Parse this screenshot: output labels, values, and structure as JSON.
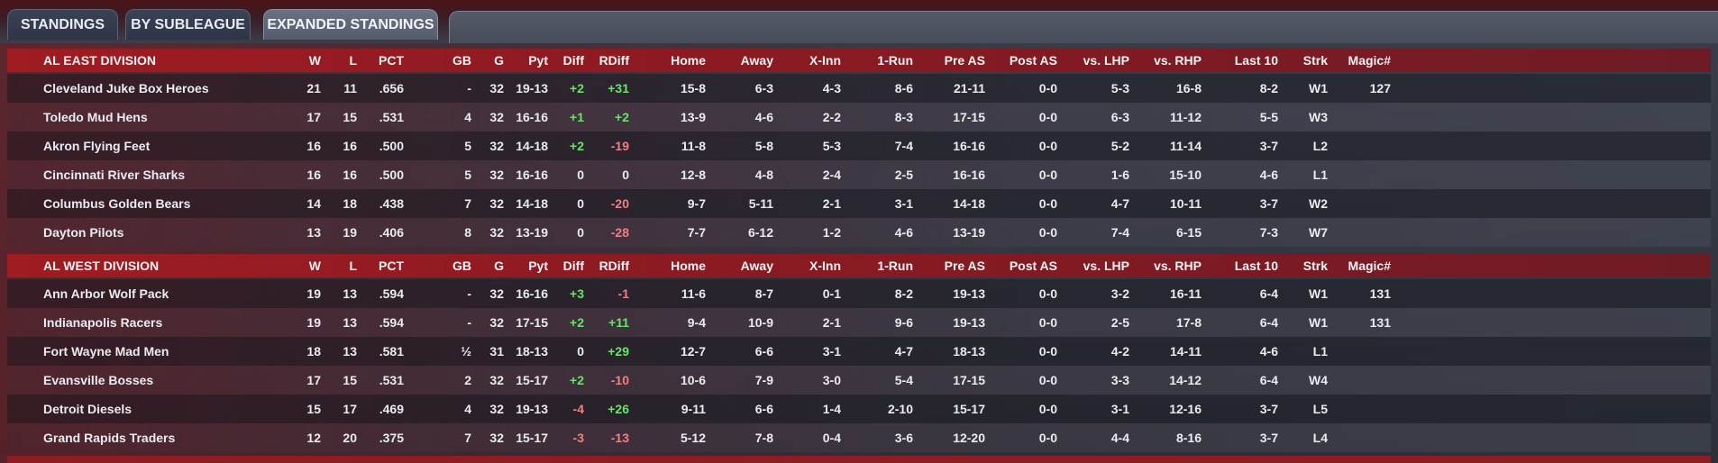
{
  "tabs": [
    {
      "label": "STANDINGS",
      "active": false
    },
    {
      "label": "BY SUBLEAGUE",
      "active": false
    },
    {
      "label": "EXPANDED STANDINGS",
      "active": true
    }
  ],
  "columns": [
    "W",
    "L",
    "PCT",
    "GB",
    "G",
    "Pyt",
    "Diff",
    "RDiff",
    "Home",
    "Away",
    "X-Inn",
    "1-Run",
    "Pre AS",
    "Post AS",
    "vs. LHP",
    "vs. RHP",
    "Last 10",
    "Strk",
    "Magic#"
  ],
  "divisions": [
    {
      "name": "AL EAST DIVISION",
      "teams": [
        {
          "team": "Cleveland Juke Box Heroes",
          "W": "21",
          "L": "11",
          "PCT": ".656",
          "GB": "-",
          "G": "32",
          "Pyt": "19-13",
          "Diff": "+2",
          "RDiff": "+31",
          "Home": "15-8",
          "Away": "6-3",
          "XInn": "4-3",
          "OneRun": "8-6",
          "PreAS": "21-11",
          "PostAS": "0-0",
          "vsLHP": "5-3",
          "vsRHP": "16-8",
          "Last10": "8-2",
          "Strk": "W1",
          "Magic": "127"
        },
        {
          "team": "Toledo  Mud Hens",
          "W": "17",
          "L": "15",
          "PCT": ".531",
          "GB": "4",
          "G": "32",
          "Pyt": "16-16",
          "Diff": "+1",
          "RDiff": "+2",
          "Home": "13-9",
          "Away": "4-6",
          "XInn": "2-2",
          "OneRun": "8-3",
          "PreAS": "17-15",
          "PostAS": "0-0",
          "vsLHP": "6-3",
          "vsRHP": "11-12",
          "Last10": "5-5",
          "Strk": "W3",
          "Magic": ""
        },
        {
          "team": "Akron  Flying Feet",
          "W": "16",
          "L": "16",
          "PCT": ".500",
          "GB": "5",
          "G": "32",
          "Pyt": "14-18",
          "Diff": "+2",
          "RDiff": "-19",
          "Home": "11-8",
          "Away": "5-8",
          "XInn": "5-3",
          "OneRun": "7-4",
          "PreAS": "16-16",
          "PostAS": "0-0",
          "vsLHP": "5-2",
          "vsRHP": "11-14",
          "Last10": "3-7",
          "Strk": "L2",
          "Magic": ""
        },
        {
          "team": "Cincinnati River Sharks",
          "W": "16",
          "L": "16",
          "PCT": ".500",
          "GB": "5",
          "G": "32",
          "Pyt": "16-16",
          "Diff": "0",
          "RDiff": "0",
          "Home": "12-8",
          "Away": "4-8",
          "XInn": "2-4",
          "OneRun": "2-5",
          "PreAS": "16-16",
          "PostAS": "0-0",
          "vsLHP": "1-6",
          "vsRHP": "15-10",
          "Last10": "4-6",
          "Strk": "L1",
          "Magic": ""
        },
        {
          "team": "Columbus Golden Bears",
          "W": "14",
          "L": "18",
          "PCT": ".438",
          "GB": "7",
          "G": "32",
          "Pyt": "14-18",
          "Diff": "0",
          "RDiff": "-20",
          "Home": "9-7",
          "Away": "5-11",
          "XInn": "2-1",
          "OneRun": "3-1",
          "PreAS": "14-18",
          "PostAS": "0-0",
          "vsLHP": "4-7",
          "vsRHP": "10-11",
          "Last10": "3-7",
          "Strk": "W2",
          "Magic": ""
        },
        {
          "team": "Dayton Pilots",
          "W": "13",
          "L": "19",
          "PCT": ".406",
          "GB": "8",
          "G": "32",
          "Pyt": "13-19",
          "Diff": "0",
          "RDiff": "-28",
          "Home": "7-7",
          "Away": "6-12",
          "XInn": "1-2",
          "OneRun": "4-6",
          "PreAS": "13-19",
          "PostAS": "0-0",
          "vsLHP": "7-4",
          "vsRHP": "6-15",
          "Last10": "7-3",
          "Strk": "W7",
          "Magic": ""
        }
      ]
    },
    {
      "name": "AL WEST DIVISION",
      "teams": [
        {
          "team": "Ann Arbor Wolf Pack",
          "W": "19",
          "L": "13",
          "PCT": ".594",
          "GB": "-",
          "G": "32",
          "Pyt": "16-16",
          "Diff": "+3",
          "RDiff": "-1",
          "Home": "11-6",
          "Away": "8-7",
          "XInn": "0-1",
          "OneRun": "8-2",
          "PreAS": "19-13",
          "PostAS": "0-0",
          "vsLHP": "3-2",
          "vsRHP": "16-11",
          "Last10": "6-4",
          "Strk": "W1",
          "Magic": "131"
        },
        {
          "team": "Indianapolis Racers",
          "W": "19",
          "L": "13",
          "PCT": ".594",
          "GB": "-",
          "G": "32",
          "Pyt": "17-15",
          "Diff": "+2",
          "RDiff": "+11",
          "Home": "9-4",
          "Away": "10-9",
          "XInn": "2-1",
          "OneRun": "9-6",
          "PreAS": "19-13",
          "PostAS": "0-0",
          "vsLHP": "2-5",
          "vsRHP": "17-8",
          "Last10": "6-4",
          "Strk": "W1",
          "Magic": "131"
        },
        {
          "team": "Fort Wayne Mad Men",
          "W": "18",
          "L": "13",
          "PCT": ".581",
          "GB": "½",
          "G": "31",
          "Pyt": "18-13",
          "Diff": "0",
          "RDiff": "+29",
          "Home": "12-7",
          "Away": "6-6",
          "XInn": "3-1",
          "OneRun": "4-7",
          "PreAS": "18-13",
          "PostAS": "0-0",
          "vsLHP": "4-2",
          "vsRHP": "14-11",
          "Last10": "4-6",
          "Strk": "L1",
          "Magic": ""
        },
        {
          "team": "Evansville Bosses",
          "W": "17",
          "L": "15",
          "PCT": ".531",
          "GB": "2",
          "G": "32",
          "Pyt": "15-17",
          "Diff": "+2",
          "RDiff": "-10",
          "Home": "10-6",
          "Away": "7-9",
          "XInn": "3-0",
          "OneRun": "5-4",
          "PreAS": "17-15",
          "PostAS": "0-0",
          "vsLHP": "3-3",
          "vsRHP": "14-12",
          "Last10": "6-4",
          "Strk": "W4",
          "Magic": ""
        },
        {
          "team": "Detroit Diesels",
          "W": "15",
          "L": "17",
          "PCT": ".469",
          "GB": "4",
          "G": "32",
          "Pyt": "19-13",
          "Diff": "-4",
          "RDiff": "+26",
          "Home": "9-11",
          "Away": "6-6",
          "XInn": "1-4",
          "OneRun": "2-10",
          "PreAS": "15-17",
          "PostAS": "0-0",
          "vsLHP": "3-1",
          "vsRHP": "12-16",
          "Last10": "3-7",
          "Strk": "L5",
          "Magic": ""
        },
        {
          "team": "Grand Rapids Traders",
          "W": "12",
          "L": "20",
          "PCT": ".375",
          "GB": "7",
          "G": "32",
          "Pyt": "15-17",
          "Diff": "-3",
          "RDiff": "-13",
          "Home": "5-12",
          "Away": "7-8",
          "XInn": "0-4",
          "OneRun": "3-6",
          "PreAS": "12-20",
          "PostAS": "0-0",
          "vsLHP": "4-4",
          "vsRHP": "8-16",
          "Last10": "3-7",
          "Strk": "L4",
          "Magic": ""
        }
      ]
    }
  ],
  "colors": {
    "header_red": "#9e1c22",
    "positive": "#69e36a",
    "negative": "#f07f80"
  }
}
